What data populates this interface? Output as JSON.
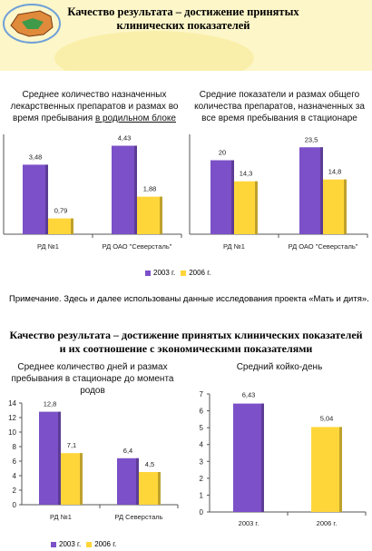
{
  "banner": {
    "title": "Качество результата – достижение принятых клинических показателей"
  },
  "note": "Примечание. Здесь и далее использованы данные исследования проекта «Мать и дитя».",
  "section2_title": "Качество результата – достижение принятых клинических показателей и их соотношение с экономическими показателями",
  "legend": {
    "items": [
      "2003 г.",
      "2006 г."
    ]
  },
  "colors": {
    "s2003": "#7b50c8",
    "s2006": "#ffd63a",
    "bg": "#fdf6c9"
  },
  "chart_data": [
    {
      "type": "bar",
      "title_parts": [
        "Среднее количество назначенных лекарственных препаратов и размах во время пребывания ",
        "в родильном блоке"
      ],
      "categories": [
        "РД №1",
        "РД ОАО \"Северсталь\""
      ],
      "series": [
        {
          "name": "2003 г.",
          "values": [
            3.48,
            4.43
          ],
          "labels": [
            "3,48",
            "4,43"
          ]
        },
        {
          "name": "2006 г.",
          "values": [
            0.79,
            1.88
          ],
          "labels": [
            "0,79",
            "1,88"
          ]
        }
      ],
      "ylim": [
        0,
        5
      ],
      "legend": "bottom"
    },
    {
      "type": "bar",
      "title": "Средние показатели и размах общего количества препаратов, назначенных за все время пребывания в стационаре",
      "categories": [
        "РД №1",
        "РД ОАО \"Северсталь\""
      ],
      "series": [
        {
          "name": "2003 г.",
          "values": [
            20,
            23.5
          ],
          "labels": [
            "20",
            "23,5"
          ]
        },
        {
          "name": "2006 г.",
          "values": [
            14.3,
            14.8
          ],
          "labels": [
            "14,3",
            "14,8"
          ]
        }
      ],
      "ylim": [
        0,
        27
      ]
    },
    {
      "type": "bar",
      "title": "Среднее количество дней и размах пребывания в стационаре до момента родов",
      "categories": [
        "РД №1",
        "РД Северсталь"
      ],
      "series": [
        {
          "name": "2003 г.",
          "values": [
            12.8,
            6.4
          ],
          "labels": [
            "12,8",
            "6,4"
          ]
        },
        {
          "name": "2006 г.",
          "values": [
            7.1,
            4.5
          ],
          "labels": [
            "7,1",
            "4,5"
          ]
        }
      ],
      "ylim": [
        0,
        14
      ],
      "yticks": [
        "0",
        "2",
        "4",
        "6",
        "8",
        "10",
        "12",
        "14"
      ],
      "legend": "bottom"
    },
    {
      "type": "bar",
      "title": "Средний койко-день",
      "categories": [
        "2003 г.",
        "2006 г."
      ],
      "values": [
        6.43,
        5.04
      ],
      "labels": [
        "6,43",
        "5,04"
      ],
      "ylim": [
        0,
        7
      ],
      "yticks": [
        "0",
        "1",
        "2",
        "3",
        "4",
        "5",
        "6",
        "7"
      ]
    }
  ]
}
